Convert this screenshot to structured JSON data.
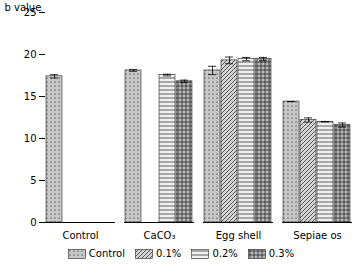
{
  "chart_data": {
    "type": "bar",
    "categories": [
      "Control",
      "CaCO₃",
      "Egg shell",
      "Sepiae os"
    ],
    "ylabel": "b value",
    "ylim": [
      0,
      25
    ],
    "yticks": [
      0,
      5,
      10,
      15,
      20,
      25
    ],
    "legend": "bottom",
    "series": [
      {
        "name": "Control",
        "color": "#c8c8c8",
        "values": [
          17.4,
          18.1,
          18.1,
          14.4
        ],
        "errors": [
          0.2,
          0.1,
          0.5,
          0.0
        ]
      },
      {
        "name": "0.1%",
        "color": "#d4d4d4",
        "values": [
          null,
          null,
          19.3,
          12.2
        ],
        "errors": [
          null,
          null,
          0.4,
          0.25
        ]
      },
      {
        "name": "0.2%",
        "color": "#f0f0f0",
        "values": [
          null,
          17.55,
          19.45,
          12.0
        ],
        "errors": [
          null,
          0.1,
          0.2,
          0.0
        ]
      },
      {
        "name": "0.3%",
        "color": "#b8b8b8",
        "values": [
          null,
          16.8,
          19.45,
          11.6
        ],
        "errors": [
          null,
          0.15,
          0.2,
          0.25
        ]
      }
    ]
  }
}
